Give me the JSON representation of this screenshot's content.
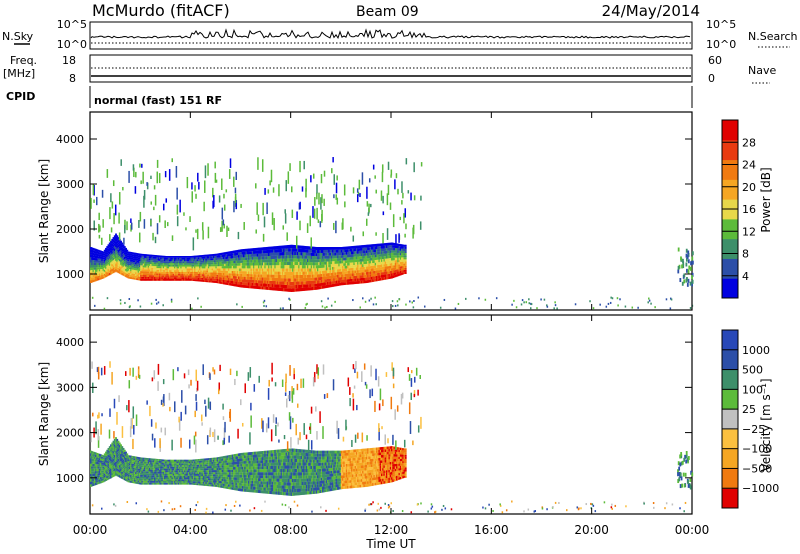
{
  "header": {
    "radar": "McMurdo (fitACF)",
    "beam": "Beam 09",
    "date": "24/May/2014"
  },
  "top_panels": {
    "nsky_label": "N.Sky",
    "nsky_ticks": [
      "10^5",
      "10^0"
    ],
    "nsearch_label": "N.Search",
    "nsearch_ticks": [
      "10^5",
      "10^0"
    ],
    "freq_label": "Freq.",
    "freq_unit": "[MHz]",
    "freq_ticks": [
      "18",
      "8"
    ],
    "nave_label": "Nave",
    "nave_ticks": [
      "60",
      "0"
    ],
    "cpid_label": "CPID",
    "cpid_text": "normal (fast) 151 RF"
  },
  "colors": {
    "power": [
      "#0000e0",
      "#2c4fa8",
      "#3d8f6a",
      "#5cbb3a",
      "#e8d84a",
      "#f5a623",
      "#f07a10",
      "#e83a10",
      "#e00000"
    ],
    "velocity": [
      "#e00000",
      "#f07a10",
      "#f5a623",
      "#fbc040",
      "#c0c0c0",
      "#5cbb3a",
      "#3d8f6a",
      "#2c4fa8",
      "#2848b8"
    ]
  },
  "chart_data": [
    {
      "type": "heatmap",
      "name": "power",
      "ylabel": "Slant Range [km]",
      "xlabel": "",
      "x_ticks": [
        "00:00",
        "04:00",
        "08:00",
        "12:00",
        "16:00",
        "20:00",
        "00:00"
      ],
      "y_ticks": [
        1000,
        2000,
        3000,
        4000
      ],
      "ylim": [
        200,
        4600
      ],
      "xlim_hours": [
        0,
        24
      ],
      "colorbar": {
        "label": "Power [dB]",
        "ticks": [
          "28",
          "24",
          "20",
          "16",
          "12",
          "8",
          "4"
        ]
      },
      "band": {
        "hours": [
          0.0,
          0.5,
          1.0,
          1.5,
          2.0,
          3.0,
          4.0,
          5.0,
          6.0,
          7.0,
          8.0,
          9.0,
          10.0,
          11.0,
          12.0,
          12.5
        ],
        "low_km": [
          800,
          900,
          1050,
          900,
          850,
          850,
          850,
          800,
          700,
          650,
          600,
          650,
          750,
          800,
          900,
          1000
        ],
        "high_km": [
          1600,
          1500,
          1900,
          1500,
          1450,
          1400,
          1400,
          1450,
          1550,
          1600,
          1650,
          1600,
          1600,
          1650,
          1700,
          1650
        ]
      }
    },
    {
      "type": "heatmap",
      "name": "velocity",
      "ylabel": "Slant Range [km]",
      "xlabel": "Time UT",
      "x_ticks": [
        "00:00",
        "04:00",
        "08:00",
        "12:00",
        "16:00",
        "20:00",
        "00:00"
      ],
      "y_ticks": [
        1000,
        2000,
        3000,
        4000
      ],
      "ylim": [
        200,
        4600
      ],
      "xlim_hours": [
        0,
        24
      ],
      "colorbar": {
        "label": "Velocity [m s⁻¹]",
        "ticks": [
          "1000",
          "500",
          "100",
          "25",
          "−25",
          "−100",
          "−500",
          "−1000"
        ]
      },
      "band": {
        "hours": [
          0.0,
          0.5,
          1.0,
          1.5,
          2.0,
          3.0,
          4.0,
          5.0,
          6.0,
          7.0,
          8.0,
          9.0,
          10.0,
          11.0,
          12.0,
          12.5
        ],
        "low_km": [
          800,
          900,
          1050,
          900,
          850,
          850,
          850,
          800,
          700,
          650,
          600,
          650,
          750,
          800,
          900,
          1000
        ],
        "high_km": [
          1600,
          1500,
          1900,
          1500,
          1450,
          1400,
          1400,
          1450,
          1550,
          1600,
          1650,
          1600,
          1600,
          1650,
          1700,
          1650
        ]
      }
    }
  ]
}
